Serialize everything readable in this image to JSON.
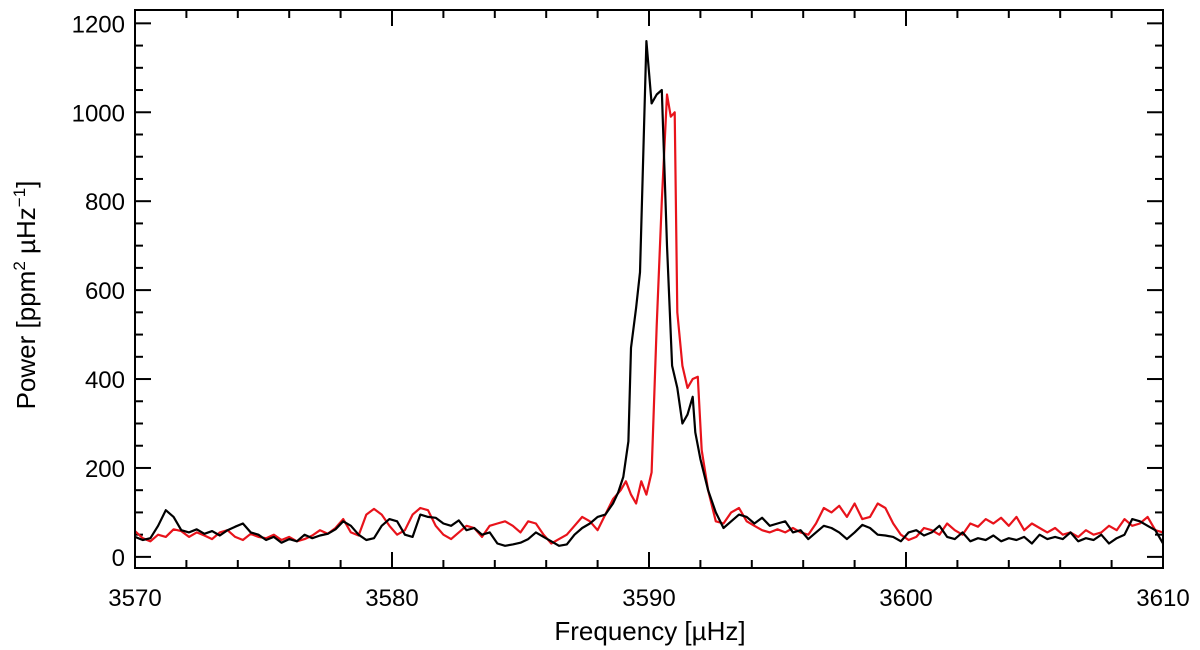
{
  "chart_data": {
    "type": "line",
    "xlabel": "Frequency [µHz]",
    "ylabel": {
      "part1": "Power [ppm",
      "sup1": "2",
      "part2": " µHz",
      "sup2": "−1",
      "part3": "]"
    },
    "xlim": [
      3570,
      3610
    ],
    "ylim": [
      -25,
      1230
    ],
    "x_ticks": [
      3570,
      3580,
      3590,
      3600,
      3610
    ],
    "y_ticks": [
      0,
      200,
      400,
      600,
      800,
      1000,
      1200
    ],
    "x_minor_step": 2,
    "y_minor_step": 50,
    "grid": false,
    "legend": "none",
    "series": [
      {
        "color": "#000000",
        "points": [
          [
            3570.0,
            45
          ],
          [
            3570.3,
            38
          ],
          [
            3570.6,
            42
          ],
          [
            3570.9,
            70
          ],
          [
            3571.2,
            105
          ],
          [
            3571.5,
            90
          ],
          [
            3571.8,
            60
          ],
          [
            3572.1,
            55
          ],
          [
            3572.4,
            62
          ],
          [
            3572.7,
            52
          ],
          [
            3573.0,
            58
          ],
          [
            3573.3,
            48
          ],
          [
            3573.6,
            60
          ],
          [
            3573.9,
            68
          ],
          [
            3574.2,
            75
          ],
          [
            3574.5,
            55
          ],
          [
            3574.8,
            50
          ],
          [
            3575.1,
            38
          ],
          [
            3575.4,
            45
          ],
          [
            3575.7,
            32
          ],
          [
            3576.0,
            40
          ],
          [
            3576.3,
            35
          ],
          [
            3576.6,
            50
          ],
          [
            3576.9,
            42
          ],
          [
            3577.2,
            48
          ],
          [
            3577.5,
            52
          ],
          [
            3577.8,
            62
          ],
          [
            3578.1,
            80
          ],
          [
            3578.4,
            70
          ],
          [
            3578.7,
            50
          ],
          [
            3579.0,
            38
          ],
          [
            3579.3,
            42
          ],
          [
            3579.6,
            70
          ],
          [
            3579.9,
            85
          ],
          [
            3580.2,
            80
          ],
          [
            3580.5,
            50
          ],
          [
            3580.8,
            45
          ],
          [
            3581.1,
            95
          ],
          [
            3581.4,
            90
          ],
          [
            3581.7,
            88
          ],
          [
            3582.0,
            75
          ],
          [
            3582.3,
            70
          ],
          [
            3582.6,
            82
          ],
          [
            3582.9,
            60
          ],
          [
            3583.2,
            65
          ],
          [
            3583.5,
            50
          ],
          [
            3583.8,
            55
          ],
          [
            3584.1,
            30
          ],
          [
            3584.4,
            25
          ],
          [
            3584.7,
            28
          ],
          [
            3585.0,
            32
          ],
          [
            3585.3,
            40
          ],
          [
            3585.6,
            55
          ],
          [
            3585.9,
            45
          ],
          [
            3586.2,
            35
          ],
          [
            3586.5,
            25
          ],
          [
            3586.8,
            28
          ],
          [
            3587.1,
            50
          ],
          [
            3587.4,
            65
          ],
          [
            3587.7,
            75
          ],
          [
            3588.0,
            90
          ],
          [
            3588.3,
            95
          ],
          [
            3588.6,
            120
          ],
          [
            3588.8,
            145
          ],
          [
            3589.0,
            180
          ],
          [
            3589.2,
            260
          ],
          [
            3589.3,
            470
          ],
          [
            3589.5,
            560
          ],
          [
            3589.65,
            640
          ],
          [
            3589.75,
            850
          ],
          [
            3589.9,
            1160
          ],
          [
            3590.1,
            1020
          ],
          [
            3590.3,
            1040
          ],
          [
            3590.5,
            1050
          ],
          [
            3590.7,
            700
          ],
          [
            3590.9,
            430
          ],
          [
            3591.1,
            380
          ],
          [
            3591.3,
            300
          ],
          [
            3591.5,
            320
          ],
          [
            3591.7,
            360
          ],
          [
            3591.8,
            280
          ],
          [
            3592.0,
            220
          ],
          [
            3592.3,
            150
          ],
          [
            3592.6,
            100
          ],
          [
            3592.9,
            65
          ],
          [
            3593.2,
            80
          ],
          [
            3593.5,
            95
          ],
          [
            3593.8,
            90
          ],
          [
            3594.1,
            75
          ],
          [
            3594.4,
            88
          ],
          [
            3594.7,
            70
          ],
          [
            3595.0,
            75
          ],
          [
            3595.3,
            80
          ],
          [
            3595.6,
            55
          ],
          [
            3595.9,
            60
          ],
          [
            3596.2,
            40
          ],
          [
            3596.5,
            55
          ],
          [
            3596.8,
            70
          ],
          [
            3597.1,
            65
          ],
          [
            3597.4,
            55
          ],
          [
            3597.7,
            40
          ],
          [
            3598.0,
            55
          ],
          [
            3598.3,
            72
          ],
          [
            3598.6,
            65
          ],
          [
            3598.9,
            50
          ],
          [
            3599.2,
            48
          ],
          [
            3599.5,
            45
          ],
          [
            3599.8,
            35
          ],
          [
            3600.1,
            55
          ],
          [
            3600.4,
            60
          ],
          [
            3600.7,
            48
          ],
          [
            3601.0,
            55
          ],
          [
            3601.3,
            70
          ],
          [
            3601.6,
            45
          ],
          [
            3601.9,
            40
          ],
          [
            3602.2,
            55
          ],
          [
            3602.5,
            35
          ],
          [
            3602.8,
            42
          ],
          [
            3603.1,
            38
          ],
          [
            3603.4,
            48
          ],
          [
            3603.7,
            35
          ],
          [
            3604.0,
            42
          ],
          [
            3604.3,
            38
          ],
          [
            3604.6,
            45
          ],
          [
            3604.9,
            30
          ],
          [
            3605.2,
            50
          ],
          [
            3605.5,
            40
          ],
          [
            3605.8,
            45
          ],
          [
            3606.1,
            40
          ],
          [
            3606.4,
            55
          ],
          [
            3606.7,
            35
          ],
          [
            3607.0,
            42
          ],
          [
            3607.3,
            38
          ],
          [
            3607.6,
            50
          ],
          [
            3607.9,
            30
          ],
          [
            3608.2,
            42
          ],
          [
            3608.5,
            50
          ],
          [
            3608.8,
            85
          ],
          [
            3609.1,
            80
          ],
          [
            3609.4,
            70
          ],
          [
            3609.7,
            60
          ],
          [
            3610.0,
            30
          ]
        ]
      },
      {
        "color": "#e8131b",
        "points": [
          [
            3570.0,
            58
          ],
          [
            3570.3,
            42
          ],
          [
            3570.6,
            35
          ],
          [
            3570.9,
            50
          ],
          [
            3571.2,
            45
          ],
          [
            3571.5,
            62
          ],
          [
            3571.8,
            58
          ],
          [
            3572.1,
            45
          ],
          [
            3572.4,
            55
          ],
          [
            3572.7,
            48
          ],
          [
            3573.0,
            40
          ],
          [
            3573.3,
            55
          ],
          [
            3573.6,
            60
          ],
          [
            3573.9,
            45
          ],
          [
            3574.2,
            38
          ],
          [
            3574.5,
            52
          ],
          [
            3574.8,
            45
          ],
          [
            3575.1,
            42
          ],
          [
            3575.4,
            50
          ],
          [
            3575.7,
            38
          ],
          [
            3576.0,
            45
          ],
          [
            3576.3,
            35
          ],
          [
            3576.6,
            40
          ],
          [
            3576.9,
            48
          ],
          [
            3577.2,
            60
          ],
          [
            3577.5,
            52
          ],
          [
            3577.8,
            65
          ],
          [
            3578.1,
            85
          ],
          [
            3578.4,
            55
          ],
          [
            3578.7,
            48
          ],
          [
            3579.0,
            95
          ],
          [
            3579.3,
            108
          ],
          [
            3579.6,
            95
          ],
          [
            3579.9,
            70
          ],
          [
            3580.2,
            50
          ],
          [
            3580.5,
            60
          ],
          [
            3580.8,
            95
          ],
          [
            3581.1,
            110
          ],
          [
            3581.4,
            105
          ],
          [
            3581.7,
            70
          ],
          [
            3582.0,
            50
          ],
          [
            3582.3,
            40
          ],
          [
            3582.6,
            55
          ],
          [
            3582.9,
            70
          ],
          [
            3583.2,
            65
          ],
          [
            3583.5,
            45
          ],
          [
            3583.8,
            70
          ],
          [
            3584.1,
            75
          ],
          [
            3584.4,
            80
          ],
          [
            3584.7,
            70
          ],
          [
            3585.0,
            55
          ],
          [
            3585.3,
            80
          ],
          [
            3585.6,
            75
          ],
          [
            3585.9,
            50
          ],
          [
            3586.2,
            30
          ],
          [
            3586.5,
            40
          ],
          [
            3586.8,
            50
          ],
          [
            3587.1,
            70
          ],
          [
            3587.4,
            90
          ],
          [
            3587.7,
            80
          ],
          [
            3588.0,
            60
          ],
          [
            3588.3,
            95
          ],
          [
            3588.6,
            130
          ],
          [
            3588.9,
            150
          ],
          [
            3589.1,
            170
          ],
          [
            3589.3,
            140
          ],
          [
            3589.5,
            120
          ],
          [
            3589.7,
            170
          ],
          [
            3589.9,
            140
          ],
          [
            3590.1,
            190
          ],
          [
            3590.3,
            520
          ],
          [
            3590.5,
            800
          ],
          [
            3590.7,
            1040
          ],
          [
            3590.85,
            990
          ],
          [
            3591.0,
            1000
          ],
          [
            3591.1,
            550
          ],
          [
            3591.3,
            430
          ],
          [
            3591.5,
            380
          ],
          [
            3591.7,
            400
          ],
          [
            3591.9,
            405
          ],
          [
            3592.05,
            240
          ],
          [
            3592.3,
            150
          ],
          [
            3592.6,
            80
          ],
          [
            3592.9,
            75
          ],
          [
            3593.2,
            100
          ],
          [
            3593.5,
            110
          ],
          [
            3593.8,
            80
          ],
          [
            3594.1,
            70
          ],
          [
            3594.4,
            60
          ],
          [
            3594.7,
            55
          ],
          [
            3595.0,
            62
          ],
          [
            3595.3,
            55
          ],
          [
            3595.6,
            65
          ],
          [
            3595.9,
            55
          ],
          [
            3596.2,
            50
          ],
          [
            3596.5,
            75
          ],
          [
            3596.8,
            110
          ],
          [
            3597.1,
            100
          ],
          [
            3597.4,
            115
          ],
          [
            3597.7,
            90
          ],
          [
            3598.0,
            120
          ],
          [
            3598.3,
            85
          ],
          [
            3598.6,
            90
          ],
          [
            3598.9,
            120
          ],
          [
            3599.2,
            110
          ],
          [
            3599.5,
            75
          ],
          [
            3599.8,
            50
          ],
          [
            3600.1,
            38
          ],
          [
            3600.4,
            45
          ],
          [
            3600.7,
            65
          ],
          [
            3601.0,
            60
          ],
          [
            3601.3,
            50
          ],
          [
            3601.6,
            75
          ],
          [
            3601.9,
            60
          ],
          [
            3602.2,
            50
          ],
          [
            3602.5,
            75
          ],
          [
            3602.8,
            68
          ],
          [
            3603.1,
            85
          ],
          [
            3603.4,
            75
          ],
          [
            3603.7,
            88
          ],
          [
            3604.0,
            70
          ],
          [
            3604.3,
            90
          ],
          [
            3604.6,
            60
          ],
          [
            3604.9,
            75
          ],
          [
            3605.2,
            65
          ],
          [
            3605.5,
            55
          ],
          [
            3605.8,
            65
          ],
          [
            3606.1,
            50
          ],
          [
            3606.4,
            55
          ],
          [
            3606.7,
            45
          ],
          [
            3607.0,
            60
          ],
          [
            3607.3,
            50
          ],
          [
            3607.6,
            55
          ],
          [
            3607.9,
            70
          ],
          [
            3608.2,
            60
          ],
          [
            3608.5,
            85
          ],
          [
            3608.8,
            70
          ],
          [
            3609.1,
            75
          ],
          [
            3609.4,
            90
          ],
          [
            3609.7,
            60
          ],
          [
            3610.0,
            55
          ]
        ]
      }
    ]
  }
}
